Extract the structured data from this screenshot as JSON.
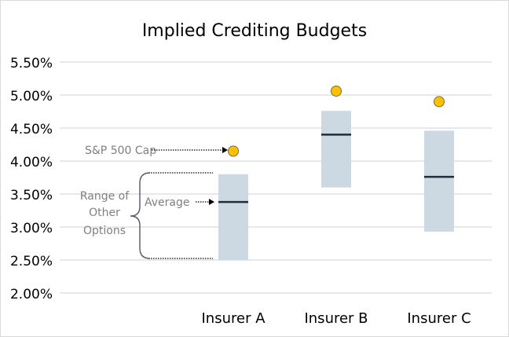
{
  "chart_data": {
    "type": "range-bar-with-markers",
    "title": "Implied Crediting Budgets",
    "xlabel": "",
    "ylabel": "",
    "ylim": [
      0.02,
      0.055
    ],
    "yticks": [
      0.02,
      0.025,
      0.03,
      0.035,
      0.04,
      0.045,
      0.05,
      0.055
    ],
    "ytick_labels": [
      "2.00%",
      "2.50%",
      "3.00%",
      "3.50%",
      "4.00%",
      "4.50%",
      "5.00%",
      "5.50%"
    ],
    "grid": true,
    "categories": [
      "Insurer A",
      "Insurer B",
      "Insurer C"
    ],
    "series": [
      {
        "name": "Range of Other Options (low)",
        "values": [
          0.025,
          0.036,
          0.0293
        ]
      },
      {
        "name": "Range of Other Options (high)",
        "values": [
          0.038,
          0.0476,
          0.0446
        ]
      },
      {
        "name": "Average",
        "values": [
          0.0338,
          0.044,
          0.0376
        ]
      },
      {
        "name": "S&P 500 Cap",
        "values": [
          0.0415,
          0.0506,
          0.049
        ]
      }
    ],
    "annotations": {
      "cap": "S&P 500 Cap",
      "average": "Average",
      "range_line1": "Range of",
      "range_line2": "Other",
      "range_line3": "Options"
    },
    "colors": {
      "range": "#ccd9e3",
      "average": "#1f2d3a",
      "cap": "#ffc000",
      "grid": "#d9d9d9",
      "annotation": "#7f7f7f"
    }
  }
}
